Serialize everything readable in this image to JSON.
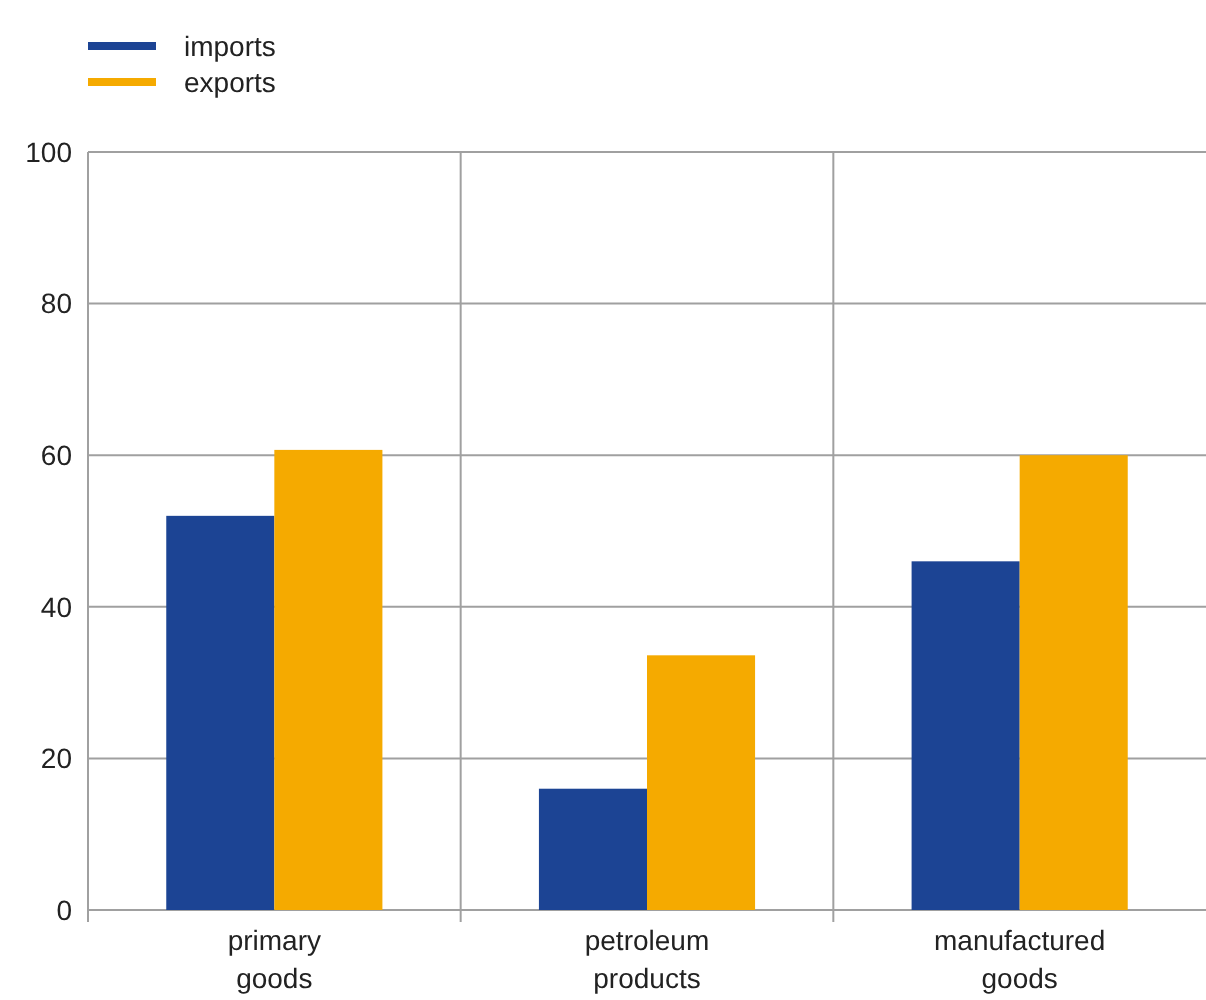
{
  "chart_data": {
    "type": "bar",
    "categories": [
      "primary goods",
      "petroleum products",
      "manufactured goods"
    ],
    "series": [
      {
        "name": "imports",
        "color": "#1c4494",
        "values": [
          52,
          16,
          46
        ]
      },
      {
        "name": "exports",
        "color": "#f5aa00",
        "values": [
          60.7,
          33.6,
          60
        ]
      }
    ],
    "ylim": [
      0,
      100
    ],
    "yticks": [
      0,
      20,
      40,
      60,
      80,
      100
    ],
    "grid": true,
    "legend": "top left"
  }
}
